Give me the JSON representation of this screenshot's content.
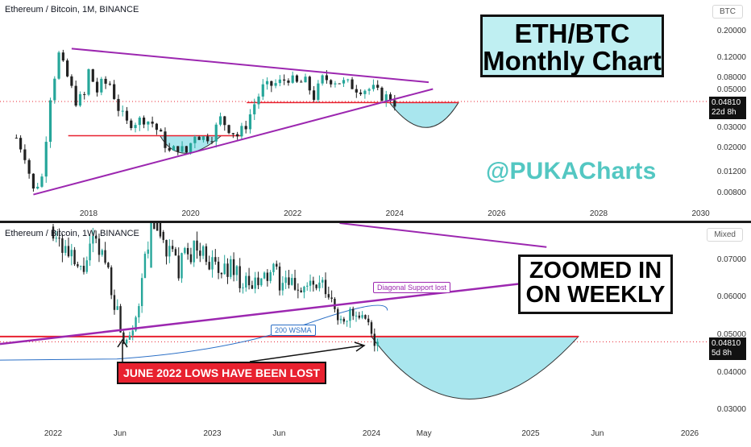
{
  "top_panel": {
    "legend": "Ethereum / Bitcoin, 1M, BINANCE",
    "scale_badge": "BTC",
    "title_line1": "ETH/BTC",
    "title_line2": "Monthly Chart",
    "watermark": "@PUKACharts",
    "price": "0.04810",
    "countdown": "22d 8h"
  },
  "bottom_panel": {
    "legend": "Ethereum / Bitcoin, 1W, BINANCE",
    "scale_badge": "Mixed",
    "title_line1": "ZOOMED IN",
    "title_line2": "ON WEEKLY",
    "diag_label": "Diagonal Support lost",
    "wsma_label": "200 WSMA",
    "lows_label": "JUNE 2022 LOWS HAVE BEEN LOST",
    "price": "0.04810",
    "countdown": "5d 8h"
  },
  "colors": {
    "up": "#26a69a",
    "down": "#222222",
    "trendline": "#9c27b0",
    "support": "#e8212f",
    "cup_fill": "#a9e6ee",
    "wsma": "#2a6fc6"
  },
  "chart_data": [
    {
      "type": "candlestick",
      "title": "Ethereum / Bitcoin, 1M, BINANCE",
      "x_ticks": [
        "2018",
        "2020",
        "2022",
        "2024",
        "2026",
        "2028",
        "2030"
      ],
      "y_ticks": [
        "0.20000",
        "0.12000",
        "0.08000",
        "0.05000",
        "0.03000",
        "0.02000",
        "0.01200",
        "0.00800"
      ],
      "y_scale": "log",
      "y_unit": "BTC",
      "last_price": 0.0481,
      "annotations": {
        "descending_resistance": [
          {
            "date": "2017-09",
            "price": 0.14
          },
          {
            "date": "2024-09",
            "price": 0.072
          }
        ],
        "ascending_support": [
          {
            "date": "2016-12",
            "price": 0.0078
          },
          {
            "date": "2024-10",
            "price": 0.063
          }
        ],
        "horizontal_support_2019": 0.025,
        "horizontal_support_2022": 0.0481
      },
      "monthly_close": [
        {
          "date": "2016-08",
          "close": 0.024
        },
        {
          "date": "2016-10",
          "close": 0.017
        },
        {
          "date": "2016-12",
          "close": 0.0085
        },
        {
          "date": "2017-02",
          "close": 0.011
        },
        {
          "date": "2017-04",
          "close": 0.055
        },
        {
          "date": "2017-06",
          "close": 0.125
        },
        {
          "date": "2017-08",
          "close": 0.08
        },
        {
          "date": "2017-10",
          "close": 0.05
        },
        {
          "date": "2017-12",
          "close": 0.055
        },
        {
          "date": "2018-01",
          "close": 0.09
        },
        {
          "date": "2018-03",
          "close": 0.06
        },
        {
          "date": "2018-04",
          "close": 0.07
        },
        {
          "date": "2018-06",
          "close": 0.07
        },
        {
          "date": "2018-08",
          "close": 0.043
        },
        {
          "date": "2018-10",
          "close": 0.032
        },
        {
          "date": "2018-12",
          "close": 0.033
        },
        {
          "date": "2019-02",
          "close": 0.035
        },
        {
          "date": "2019-04",
          "close": 0.032
        },
        {
          "date": "2019-06",
          "close": 0.025
        },
        {
          "date": "2019-08",
          "close": 0.018
        },
        {
          "date": "2019-10",
          "close": 0.02
        },
        {
          "date": "2019-12",
          "close": 0.018
        },
        {
          "date": "2020-02",
          "close": 0.026
        },
        {
          "date": "2020-04",
          "close": 0.024
        },
        {
          "date": "2020-06",
          "close": 0.025
        },
        {
          "date": "2020-08",
          "close": 0.035
        },
        {
          "date": "2020-10",
          "close": 0.029
        },
        {
          "date": "2020-12",
          "close": 0.025
        },
        {
          "date": "2021-02",
          "close": 0.031
        },
        {
          "date": "2021-04",
          "close": 0.047
        },
        {
          "date": "2021-06",
          "close": 0.065
        },
        {
          "date": "2021-08",
          "close": 0.068
        },
        {
          "date": "2021-10",
          "close": 0.072
        },
        {
          "date": "2021-12",
          "close": 0.079
        },
        {
          "date": "2022-02",
          "close": 0.07
        },
        {
          "date": "2022-04",
          "close": 0.073
        },
        {
          "date": "2022-06",
          "close": 0.054
        },
        {
          "date": "2022-08",
          "close": 0.077
        },
        {
          "date": "2022-10",
          "close": 0.076
        },
        {
          "date": "2022-12",
          "close": 0.073
        },
        {
          "date": "2023-02",
          "close": 0.07
        },
        {
          "date": "2023-04",
          "close": 0.064
        },
        {
          "date": "2023-06",
          "close": 0.063
        },
        {
          "date": "2023-08",
          "close": 0.063
        },
        {
          "date": "2023-10",
          "close": 0.055
        },
        {
          "date": "2023-12",
          "close": 0.053
        },
        {
          "date": "2024-01",
          "close": 0.0481
        }
      ]
    },
    {
      "type": "candlestick",
      "title": "Ethereum / Bitcoin, 1W, BINANCE",
      "x_ticks": [
        "2022",
        "Jun",
        "2023",
        "Jun",
        "2024",
        "May",
        "2025",
        "Jun",
        "2026"
      ],
      "y_ticks": [
        "0.07000",
        "0.06000",
        "0.05000",
        "0.04000",
        "0.03000"
      ],
      "y_scale": "mixed",
      "last_price": 0.0481,
      "annotations": {
        "june_2022_low": 0.0481,
        "wsma_200_end": 0.0565,
        "diagonal_support_end": 0.064
      },
      "weekly_close": [
        {
          "date": "2022-01-03",
          "close": 0.079
        },
        {
          "date": "2022-02-01",
          "close": 0.072
        },
        {
          "date": "2022-03-01",
          "close": 0.066
        },
        {
          "date": "2022-04-01",
          "close": 0.074
        },
        {
          "date": "2022-05-01",
          "close": 0.07
        },
        {
          "date": "2022-06-13",
          "close": 0.0481
        },
        {
          "date": "2022-07-15",
          "close": 0.058
        },
        {
          "date": "2022-08-15",
          "close": 0.084
        },
        {
          "date": "2022-09-15",
          "close": 0.074
        },
        {
          "date": "2022-10-15",
          "close": 0.068
        },
        {
          "date": "2022-11-15",
          "close": 0.073
        },
        {
          "date": "2022-12-15",
          "close": 0.072
        },
        {
          "date": "2023-01-15",
          "close": 0.066
        },
        {
          "date": "2023-02-15",
          "close": 0.069
        },
        {
          "date": "2023-03-15",
          "close": 0.063
        },
        {
          "date": "2023-04-15",
          "close": 0.063
        },
        {
          "date": "2023-05-15",
          "close": 0.067
        },
        {
          "date": "2023-06-15",
          "close": 0.063
        },
        {
          "date": "2023-07-15",
          "close": 0.063
        },
        {
          "date": "2023-08-15",
          "close": 0.063
        },
        {
          "date": "2023-09-15",
          "close": 0.062
        },
        {
          "date": "2023-10-15",
          "close": 0.055
        },
        {
          "date": "2023-11-15",
          "close": 0.055
        },
        {
          "date": "2023-12-15",
          "close": 0.053
        },
        {
          "date": "2024-01-15",
          "close": 0.0481
        }
      ]
    }
  ]
}
